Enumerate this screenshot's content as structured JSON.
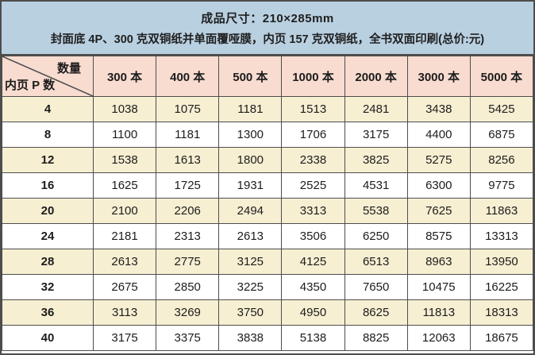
{
  "header": {
    "line1": "成品尺寸：210×285mm",
    "line2": "封面底 4P、300 克双铜纸并单面覆哑膜，内页 157 克双铜纸，全书双面印刷(总价:元)"
  },
  "table": {
    "corner": {
      "top_right": "数量",
      "bottom_left": "内页 P 数"
    },
    "columns": [
      "300 本",
      "400 本",
      "500 本",
      "1000 本",
      "2000 本",
      "3000 本",
      "5000 本"
    ],
    "rows": [
      {
        "pages": "4",
        "values": [
          "1038",
          "1075",
          "1181",
          "1513",
          "2481",
          "3438",
          "5425"
        ]
      },
      {
        "pages": "8",
        "values": [
          "1100",
          "1181",
          "1300",
          "1706",
          "3175",
          "4400",
          "6875"
        ]
      },
      {
        "pages": "12",
        "values": [
          "1538",
          "1613",
          "1800",
          "2338",
          "3825",
          "5275",
          "8256"
        ]
      },
      {
        "pages": "16",
        "values": [
          "1625",
          "1725",
          "1931",
          "2525",
          "4531",
          "6300",
          "9775"
        ]
      },
      {
        "pages": "20",
        "values": [
          "2100",
          "2206",
          "2494",
          "3313",
          "5538",
          "7625",
          "11863"
        ]
      },
      {
        "pages": "24",
        "values": [
          "2181",
          "2313",
          "2613",
          "3506",
          "6250",
          "8575",
          "13313"
        ]
      },
      {
        "pages": "28",
        "values": [
          "2613",
          "2775",
          "3125",
          "4125",
          "6513",
          "8963",
          "13950"
        ]
      },
      {
        "pages": "32",
        "values": [
          "2675",
          "2850",
          "3225",
          "4350",
          "7650",
          "10475",
          "16225"
        ]
      },
      {
        "pages": "36",
        "values": [
          "3113",
          "3269",
          "3750",
          "4950",
          "8625",
          "11813",
          "18313"
        ]
      },
      {
        "pages": "40",
        "values": [
          "3175",
          "3375",
          "3838",
          "5138",
          "8825",
          "12063",
          "18675"
        ]
      }
    ]
  },
  "colors": {
    "title_background": "#b9d0e1",
    "column_header_background": "#f8dcd0",
    "stripe_row_background": "#f7efd2",
    "plain_row_background": "#ffffff",
    "border": "#4d4d4d",
    "text": "#1c1c1c"
  }
}
